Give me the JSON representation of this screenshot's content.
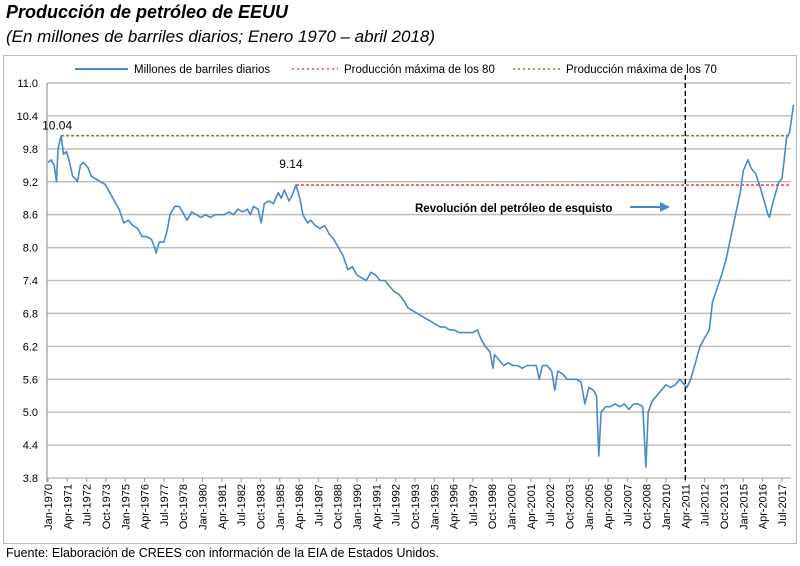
{
  "title": "Producción de petróleo de EEUU",
  "subtitle": "(En millones de barriles diarios; Enero 1970 – abril  2018)",
  "footer": "Fuente: Elaboración de CREES con información de la EIA de Estados Unidos.",
  "colors": {
    "series": "#4a89c8",
    "max80": "#e05050",
    "max70": "#6b8e23",
    "grid": "#bfbfbf",
    "vline": "#000000"
  },
  "chart_data": {
    "type": "line",
    "title": "Producción de petróleo de EEUU",
    "ylabel": "Millones de barriles diarios",
    "ylim": [
      3.8,
      11.0
    ],
    "yticks": [
      "11.0",
      "10.4",
      "9.8",
      "9.2",
      "8.6",
      "8.0",
      "7.4",
      "6.8",
      "6.2",
      "5.6",
      "5.0",
      "4.4",
      "3.8"
    ],
    "xlim_years": [
      1970.0,
      2018.25
    ],
    "xticks": [
      "Jan-1970",
      "Apr-1971",
      "Jul-1972",
      "Oct-1973",
      "Jan-1975",
      "Apr-1976",
      "Jul-1977",
      "Oct-1978",
      "Jan-1980",
      "Apr-1981",
      "Jul-1982",
      "Oct-1983",
      "Jan-1985",
      "Apr-1986",
      "Jul-1987",
      "Oct-1988",
      "Jan-1990",
      "Apr-1991",
      "Jul-1992",
      "Oct-1993",
      "Jan-1995",
      "Apr-1996",
      "Jul-1997",
      "Oct-1998",
      "Jan-2000",
      "Apr-2001",
      "Jul-2002",
      "Oct-2003",
      "Jan-2005",
      "Apr-2006",
      "Jul-2007",
      "Oct-2008",
      "Jan-2010",
      "Apr-2011",
      "Jul-2012",
      "Oct-2013",
      "Jan-2015",
      "Apr-2016",
      "Jul-2017"
    ],
    "grid": true,
    "legend_position": "top",
    "legend": [
      "Millones de barriles diarios",
      "Producción máxima de los 80",
      "Producción máxima de los 70"
    ],
    "reference_lines": [
      {
        "name": "Producción máxima de los 70",
        "value": 10.04,
        "from_year": 1970.85,
        "label": "10.04"
      },
      {
        "name": "Producción máxima de los 80",
        "value": 9.14,
        "from_year": 1986.05,
        "label": "9.14"
      }
    ],
    "vertical_marker_year": 2011.25,
    "annotation": "Revolución del petróleo de esquisto",
    "series": [
      {
        "name": "Millones de barriles diarios",
        "x": [
          1970.0,
          1970.2,
          1970.4,
          1970.55,
          1970.65,
          1970.85,
          1971.0,
          1971.2,
          1971.4,
          1971.6,
          1971.8,
          1971.9,
          1972.1,
          1972.3,
          1972.6,
          1972.8,
          1973.1,
          1973.4,
          1973.7,
          1974.0,
          1974.3,
          1974.6,
          1974.9,
          1975.2,
          1975.5,
          1975.8,
          1976.1,
          1976.4,
          1976.7,
          1976.9,
          1977.0,
          1977.2,
          1977.5,
          1977.7,
          1977.9,
          1978.2,
          1978.5,
          1978.8,
          1979.0,
          1979.3,
          1979.6,
          1979.9,
          1980.2,
          1980.5,
          1980.8,
          1981.1,
          1981.4,
          1981.7,
          1982.0,
          1982.3,
          1982.6,
          1982.9,
          1983.1,
          1983.3,
          1983.6,
          1983.8,
          1984.0,
          1984.3,
          1984.6,
          1984.9,
          1985.1,
          1985.3,
          1985.6,
          1985.8,
          1986.05,
          1986.3,
          1986.5,
          1986.8,
          1987.0,
          1987.3,
          1987.6,
          1987.9,
          1988.2,
          1988.5,
          1988.8,
          1989.1,
          1989.4,
          1989.7,
          1990.0,
          1990.3,
          1990.6,
          1990.9,
          1991.2,
          1991.5,
          1991.8,
          1992.1,
          1992.4,
          1992.7,
          1993.0,
          1993.3,
          1993.6,
          1993.9,
          1994.2,
          1994.5,
          1994.8,
          1995.1,
          1995.4,
          1995.7,
          1996.0,
          1996.3,
          1996.6,
          1996.9,
          1997.2,
          1997.5,
          1997.8,
          1998.0,
          1998.3,
          1998.6,
          1998.8,
          1998.9,
          1999.2,
          1999.5,
          1999.8,
          2000.1,
          2000.4,
          2000.7,
          2001.0,
          2001.3,
          2001.6,
          2001.8,
          2002.0,
          2002.3,
          2002.6,
          2002.8,
          2003.0,
          2003.3,
          2003.6,
          2003.9,
          2004.2,
          2004.5,
          2004.75,
          2005.0,
          2005.3,
          2005.5,
          2005.65,
          2005.8,
          2006.1,
          2006.4,
          2006.7,
          2007.0,
          2007.3,
          2007.6,
          2007.9,
          2008.2,
          2008.5,
          2008.7,
          2008.85,
          2009.1,
          2009.4,
          2009.7,
          2010.0,
          2010.3,
          2010.6,
          2010.9,
          2011.2,
          2011.35,
          2011.6,
          2011.9,
          2012.2,
          2012.5,
          2012.8,
          2013.0,
          2013.3,
          2013.6,
          2013.9,
          2014.2,
          2014.5,
          2014.8,
          2015.0,
          2015.3,
          2015.5,
          2015.8,
          2016.1,
          2016.4,
          2016.6,
          2016.7,
          2016.9,
          2017.1,
          2017.3,
          2017.5,
          2017.65,
          2017.8,
          2017.9,
          2018.0,
          2018.25
        ],
        "values": [
          9.55,
          9.6,
          9.5,
          9.2,
          9.8,
          10.04,
          9.7,
          9.75,
          9.55,
          9.3,
          9.25,
          9.2,
          9.5,
          9.55,
          9.45,
          9.3,
          9.25,
          9.2,
          9.15,
          9.0,
          8.85,
          8.7,
          8.45,
          8.5,
          8.4,
          8.35,
          8.2,
          8.2,
          8.15,
          8.0,
          7.9,
          8.1,
          8.1,
          8.3,
          8.6,
          8.75,
          8.75,
          8.6,
          8.5,
          8.65,
          8.6,
          8.55,
          8.6,
          8.55,
          8.6,
          8.6,
          8.6,
          8.65,
          8.6,
          8.7,
          8.65,
          8.7,
          8.6,
          8.75,
          8.7,
          8.45,
          8.8,
          8.85,
          8.8,
          9.0,
          8.9,
          9.05,
          8.85,
          8.95,
          9.14,
          8.9,
          8.6,
          8.45,
          8.5,
          8.4,
          8.35,
          8.4,
          8.25,
          8.15,
          8.0,
          7.85,
          7.6,
          7.65,
          7.5,
          7.45,
          7.4,
          7.55,
          7.5,
          7.4,
          7.4,
          7.3,
          7.2,
          7.15,
          7.05,
          6.9,
          6.85,
          6.8,
          6.75,
          6.7,
          6.65,
          6.6,
          6.55,
          6.55,
          6.5,
          6.5,
          6.45,
          6.45,
          6.45,
          6.45,
          6.5,
          6.35,
          6.2,
          6.1,
          5.8,
          6.05,
          5.95,
          5.85,
          5.9,
          5.85,
          5.85,
          5.8,
          5.85,
          5.85,
          5.85,
          5.6,
          5.85,
          5.85,
          5.75,
          5.4,
          5.75,
          5.7,
          5.6,
          5.6,
          5.6,
          5.55,
          5.15,
          5.45,
          5.4,
          5.3,
          4.2,
          5.0,
          5.1,
          5.1,
          5.15,
          5.1,
          5.15,
          5.05,
          5.15,
          5.15,
          5.1,
          4.0,
          5.0,
          5.2,
          5.3,
          5.4,
          5.5,
          5.45,
          5.5,
          5.6,
          5.5,
          5.45,
          5.6,
          5.9,
          6.2,
          6.35,
          6.5,
          7.0,
          7.25,
          7.5,
          7.8,
          8.2,
          8.6,
          9.0,
          9.4,
          9.6,
          9.45,
          9.35,
          9.1,
          8.8,
          8.6,
          8.55,
          8.8,
          9.0,
          9.2,
          9.25,
          9.6,
          10.0,
          10.05,
          10.1,
          10.6
        ]
      }
    ]
  }
}
